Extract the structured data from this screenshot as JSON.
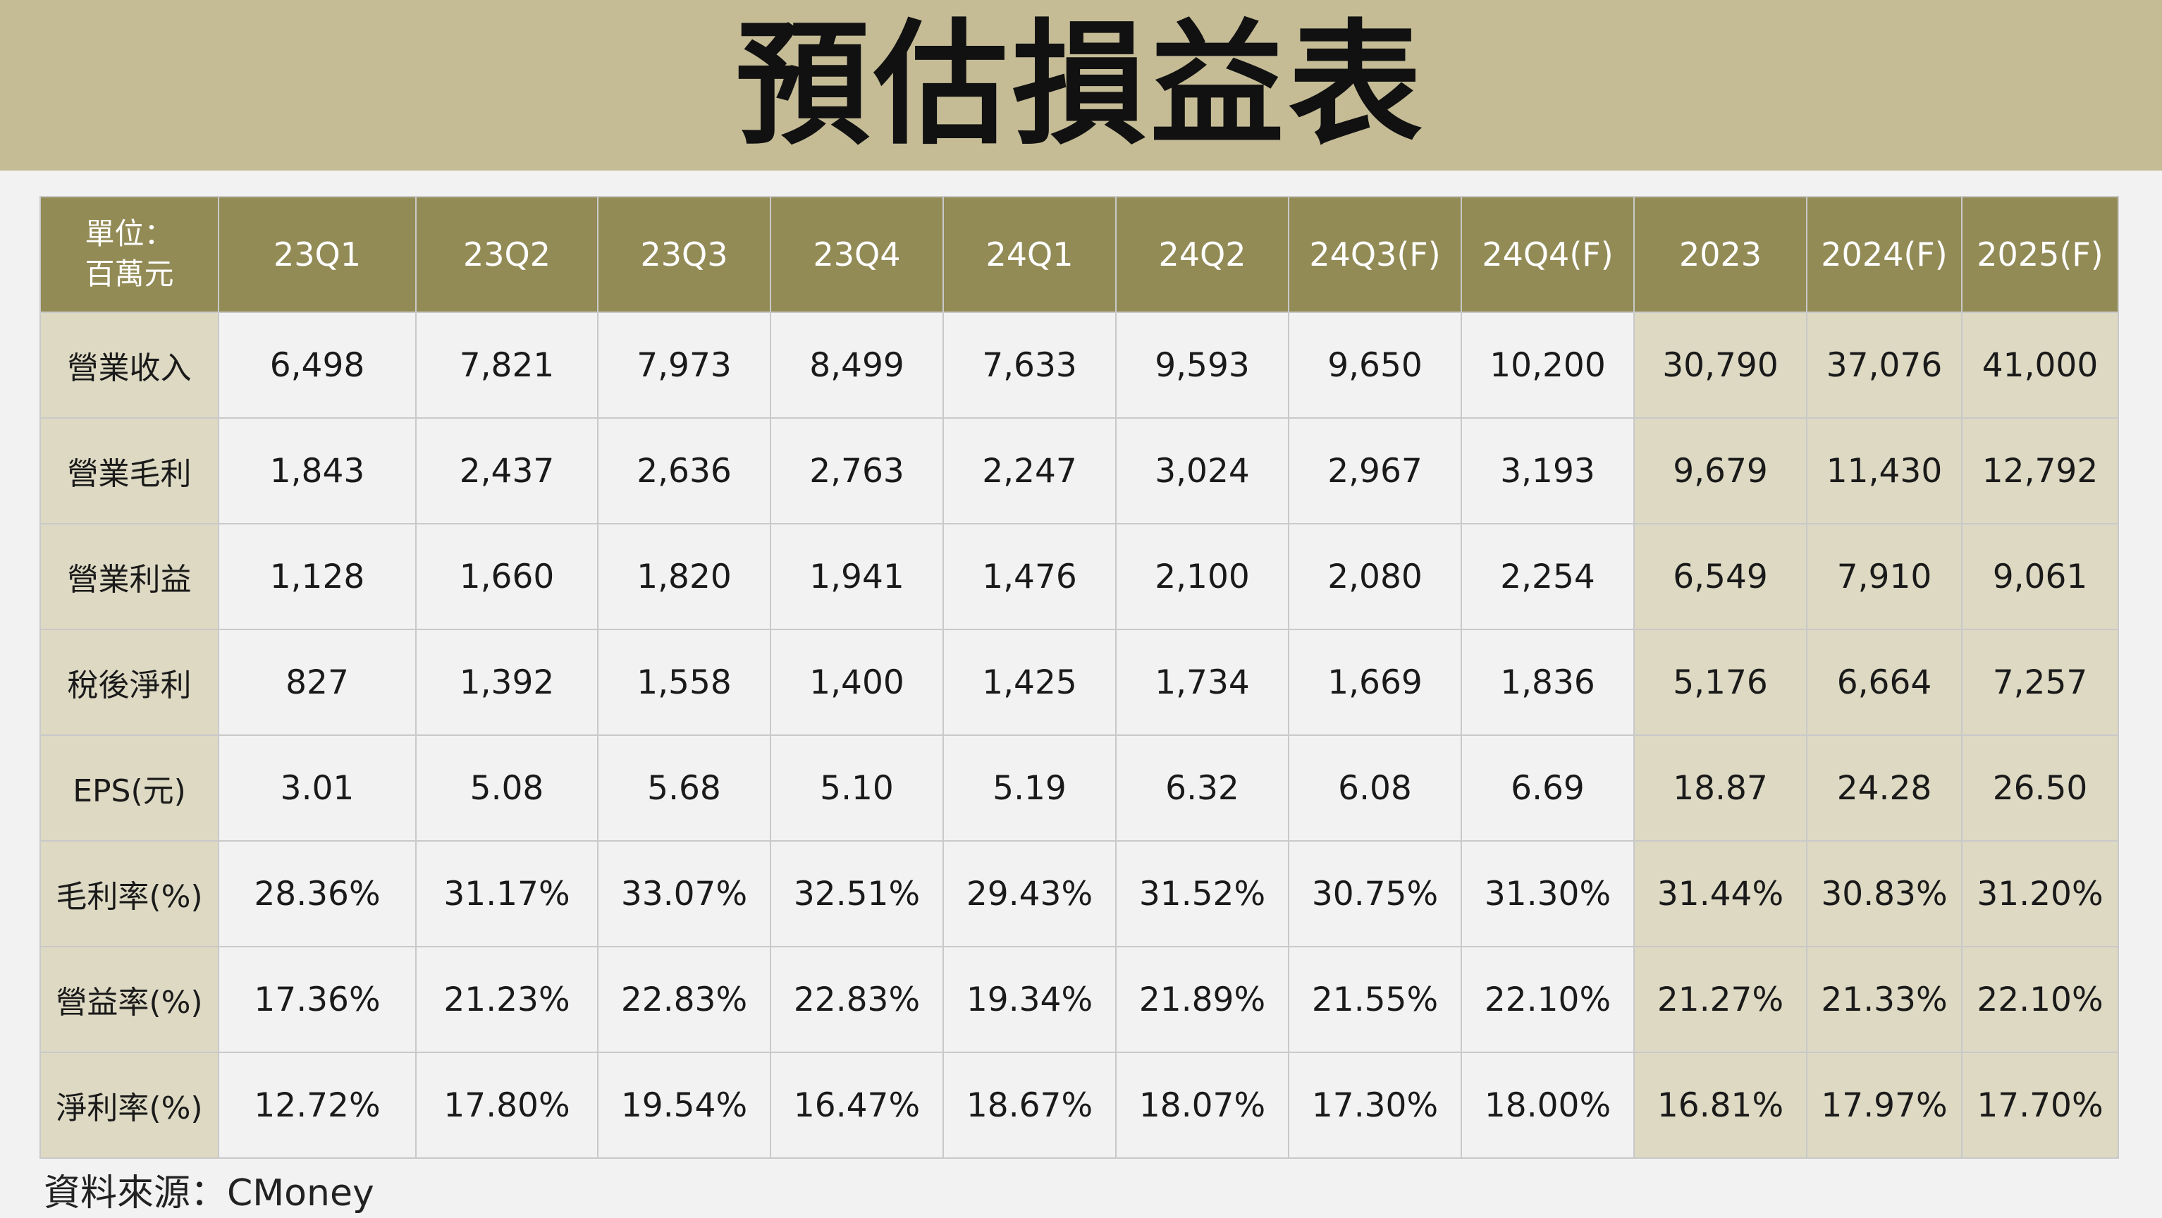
{
  "title": "預估損益表",
  "unit_label": [
    "單位：",
    "百萬元"
  ],
  "columns": [
    "23Q1",
    "23Q2",
    "23Q3",
    "23Q4",
    "24Q1",
    "24Q2",
    "24Q3(F)",
    "24Q4(F)",
    "2023",
    "2024(F)",
    "2025(F)"
  ],
  "rows": [
    {
      "label": "營業收入",
      "values": [
        "6,498",
        "7,821",
        "7,973",
        "8,499",
        "7,633",
        "9,593",
        "9,650",
        "10,200",
        "30,790",
        "37,076",
        "41,000"
      ]
    },
    {
      "label": "營業毛利",
      "values": [
        "1,843",
        "2,437",
        "2,636",
        "2,763",
        "2,247",
        "3,024",
        "2,967",
        "3,193",
        "9,679",
        "11,430",
        "12,792"
      ]
    },
    {
      "label": "營業利益",
      "values": [
        "1,128",
        "1,660",
        "1,820",
        "1,941",
        "1,476",
        "2,100",
        "2,080",
        "2,254",
        "6,549",
        "7,910",
        "9,061"
      ]
    },
    {
      "label": "稅後淨利",
      "values": [
        "827",
        "1,392",
        "1,558",
        "1,400",
        "1,425",
        "1,734",
        "1,669",
        "1,836",
        "5,176",
        "6,664",
        "7,257"
      ]
    },
    {
      "label": "EPS(元)",
      "values": [
        "3.01",
        "5.08",
        "5.68",
        "5.10",
        "5.19",
        "6.32",
        "6.08",
        "6.69",
        "18.87",
        "24.28",
        "26.50"
      ]
    },
    {
      "label": "毛利率(%)",
      "values": [
        "28.36%",
        "31.17%",
        "33.07%",
        "32.51%",
        "29.43%",
        "31.52%",
        "30.75%",
        "31.30%",
        "31.44%",
        "30.83%",
        "31.20%"
      ]
    },
    {
      "label": "營益率(%)",
      "values": [
        "17.36%",
        "21.23%",
        "22.83%",
        "22.83%",
        "19.34%",
        "21.89%",
        "21.55%",
        "22.10%",
        "21.27%",
        "21.33%",
        "22.10%"
      ]
    },
    {
      "label": "淨利率(%)",
      "values": [
        "12.72%",
        "17.80%",
        "19.54%",
        "16.47%",
        "18.67%",
        "18.07%",
        "17.30%",
        "18.00%",
        "16.81%",
        "17.97%",
        "17.70%"
      ]
    }
  ],
  "source": "資料來源：CMoney",
  "colors": {
    "title_band": "#c5bc96",
    "header_bg": "#938b56",
    "label_bg": "#ddd9c3",
    "cell_bg": "#f2f2f2"
  }
}
